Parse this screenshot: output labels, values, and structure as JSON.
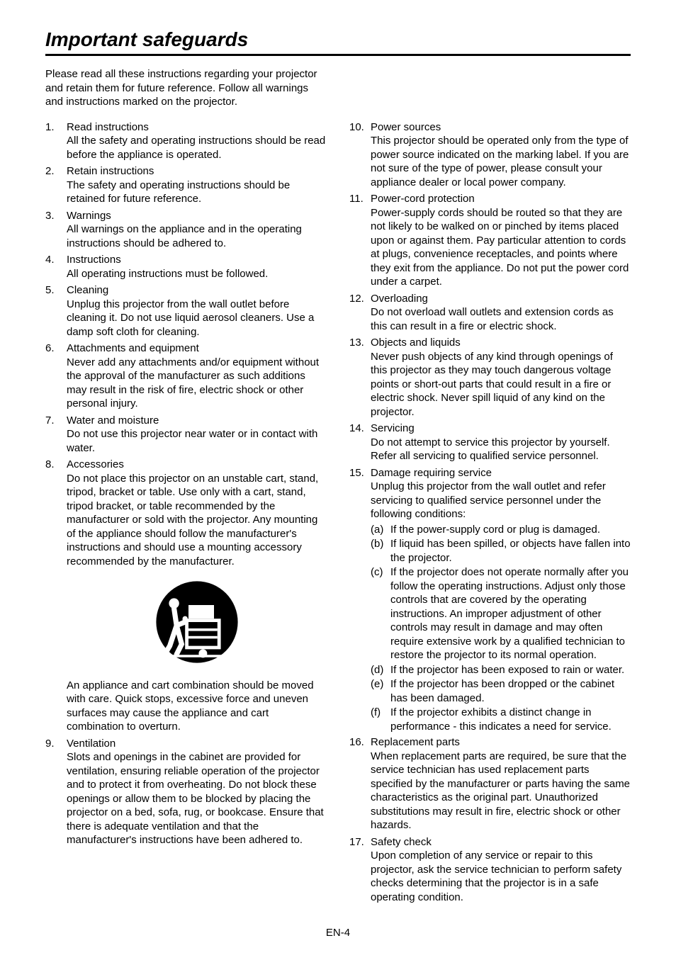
{
  "page": {
    "title": "Important safeguards",
    "intro": "Please read all these instructions regarding your projector and retain them for future reference. Follow all warnings and instructions marked on the projector.",
    "footer": "EN-4"
  },
  "items": [
    {
      "n": "1.",
      "title": "Read instructions",
      "text": "All the safety and operating instructions should be read before the appliance is operated."
    },
    {
      "n": "2.",
      "title": "Retain instructions",
      "text": "The safety and operating instructions should be retained for future reference."
    },
    {
      "n": "3.",
      "title": "Warnings",
      "text": "All warnings on the appliance and in the operating instructions should be adhered to."
    },
    {
      "n": "4.",
      "title": "Instructions",
      "text": "All operating instructions must be followed."
    },
    {
      "n": "5.",
      "title": "Cleaning",
      "text": "Unplug this projector from the wall outlet before cleaning it. Do not use liquid aerosol cleaners. Use a damp soft cloth for cleaning."
    },
    {
      "n": "6.",
      "title": "Attachments and equipment",
      "text": "Never add any attachments and/or equipment without the approval of the manufacturer as such additions may result in the risk of fire, electric shock or other personal injury."
    },
    {
      "n": "7.",
      "title": "Water and moisture",
      "text": "Do not use this projector near water or in contact with water."
    },
    {
      "n": "8.",
      "title": "Accessories",
      "text": "Do not place this projector on an unstable cart, stand, tripod, bracket or table. Use only with a cart, stand, tripod bracket, or table recommended by the manufacturer or sold with the projector. Any mounting of the appliance should follow the manufacturer's instructions and should use a mounting accessory recommended by the manufacturer.",
      "after_icon_text": "An appliance and cart combination should be moved with care. Quick stops, excessive force and uneven surfaces may cause the appliance and cart combination to overturn.",
      "has_icon": true
    },
    {
      "n": "9.",
      "title": "Ventilation",
      "text": "Slots and openings in the cabinet are provided for ventilation, ensuring reliable operation of the projector and to protect it from overheating. Do not block these openings or allow them to be blocked by placing the projector on a bed, sofa, rug, or bookcase. Ensure that there is adequate ventilation and that the manufacturer's instructions have been adhered to."
    },
    {
      "n": "10.",
      "title": "Power sources",
      "text": "This projector should be operated only from the type of power source indicated on the marking label. If you are not sure of the type of power, please consult your appliance dealer or local power company."
    },
    {
      "n": "11.",
      "title": "Power-cord protection",
      "text": "Power-supply cords should be routed so that they are not likely to be walked on or pinched by items placed upon or against them. Pay particular attention to cords at plugs, convenience receptacles, and points where they exit from the appliance. Do not put the power cord under a carpet."
    },
    {
      "n": "12.",
      "title": "Overloading",
      "text": "Do not overload wall outlets and extension cords as this can result in a fire or electric shock."
    },
    {
      "n": "13.",
      "title": "Objects and liquids",
      "text": "Never push objects of any kind through openings of this projector as they may touch dangerous voltage points or short-out parts that could result in a fire or electric shock. Never spill liquid of any kind on the projector."
    },
    {
      "n": "14.",
      "title": "Servicing",
      "text": "Do not attempt to service this projector by yourself. Refer all servicing to qualified service personnel."
    },
    {
      "n": "15.",
      "title": "Damage requiring service",
      "text": "Unplug this projector from the wall outlet and refer servicing to qualified service personnel under the following conditions:",
      "subs": [
        {
          "l": "(a)",
          "t": "If the power-supply cord or plug is damaged."
        },
        {
          "l": "(b)",
          "t": "If liquid has been spilled, or objects have fallen into the projector."
        },
        {
          "l": "(c)",
          "t": "If the projector does not operate normally after you follow the operating instructions. Adjust only those controls that are covered by the operating instructions. An improper adjustment of other controls may result in damage and may often require extensive work by a qualified technician to restore the projector to its normal operation."
        },
        {
          "l": "(d)",
          "t": "If the projector has been exposed to rain or water."
        },
        {
          "l": "(e)",
          "t": "If the projector has been dropped or the cabinet has been damaged."
        },
        {
          "l": "(f)",
          "t": "If the projector exhibits a distinct change in performance - this indicates a need for service."
        }
      ],
      "allow_break": true
    },
    {
      "n": "16.",
      "title": "Replacement parts",
      "text": "When replacement parts are required, be sure that the service technician has used replacement parts specified by the manufacturer or parts having the same characteristics as the original part. Unauthorized substitutions may result in fire, electric shock or other hazards."
    },
    {
      "n": "17.",
      "title": "Safety check",
      "text": "Upon completion of any service or repair to this projector, ask the service technician to perform safety checks determining that the projector is in a safe operating condition."
    }
  ],
  "style": {
    "text_color": "#000000",
    "background_color": "#ffffff",
    "rule_color": "#000000",
    "title_fontsize": 28,
    "body_fontsize": 15,
    "line_height": 1.3
  }
}
